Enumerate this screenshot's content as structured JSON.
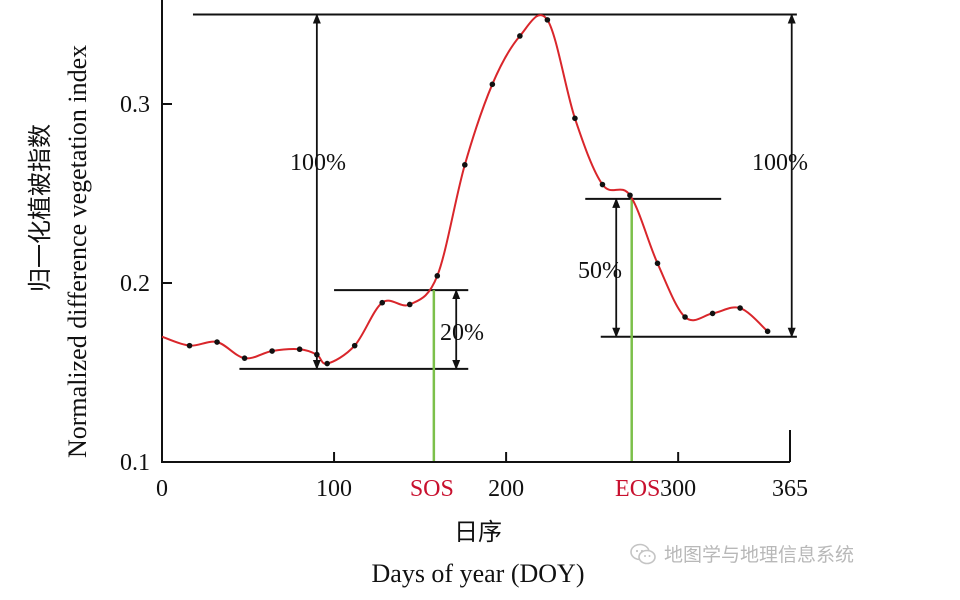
{
  "chart_data": {
    "type": "line",
    "ylabel_cn": "归一化植被指数",
    "ylabel_en": "Normalized difference vegetation index",
    "xlabel_cn": "日序",
    "xlabel_en": "Days of year (DOY)",
    "xlim": [
      0,
      365
    ],
    "ylim": [
      0.1,
      0.36
    ],
    "x_ticks": [
      {
        "value": 0,
        "label": "0"
      },
      {
        "value": 100,
        "label": "100"
      },
      {
        "value": 200,
        "label": "200"
      },
      {
        "value": 300,
        "label": "300"
      },
      {
        "value": 365,
        "label": "365"
      }
    ],
    "y_ticks": [
      {
        "value": 0.1,
        "label": "0.1"
      },
      {
        "value": 0.2,
        "label": "0.2"
      },
      {
        "value": 0.3,
        "label": "0.3"
      }
    ],
    "series": [
      {
        "color": "#d9262b",
        "points": [
          [
            0,
            0.17
          ],
          [
            16,
            0.165
          ],
          [
            32,
            0.167
          ],
          [
            48,
            0.158
          ],
          [
            64,
            0.162
          ],
          [
            80,
            0.163
          ],
          [
            90,
            0.16
          ],
          [
            96,
            0.155
          ],
          [
            112,
            0.165
          ],
          [
            128,
            0.189
          ],
          [
            144,
            0.188
          ],
          [
            160,
            0.204
          ],
          [
            176,
            0.266
          ],
          [
            192,
            0.311
          ],
          [
            208,
            0.338
          ],
          [
            224,
            0.347
          ],
          [
            240,
            0.292
          ],
          [
            256,
            0.255
          ],
          [
            272,
            0.249
          ],
          [
            288,
            0.211
          ],
          [
            304,
            0.181
          ],
          [
            320,
            0.183
          ],
          [
            336,
            0.186
          ],
          [
            352,
            0.173
          ]
        ]
      }
    ],
    "sos": {
      "label": "SOS",
      "doy": 158
    },
    "eos": {
      "label": "EOS",
      "doy": 273
    },
    "levels": {
      "max": 0.35,
      "min_left": 0.152,
      "min_right": 0.17,
      "sos_value": 0.196,
      "eos_value": 0.247
    },
    "annotations": {
      "left_full": "100%",
      "right_full": "100%",
      "sos_pct": "20%",
      "eos_pct": "50%"
    }
  },
  "watermark": {
    "text": "地图学与地理信息系统",
    "icon": "wechat-icon"
  }
}
